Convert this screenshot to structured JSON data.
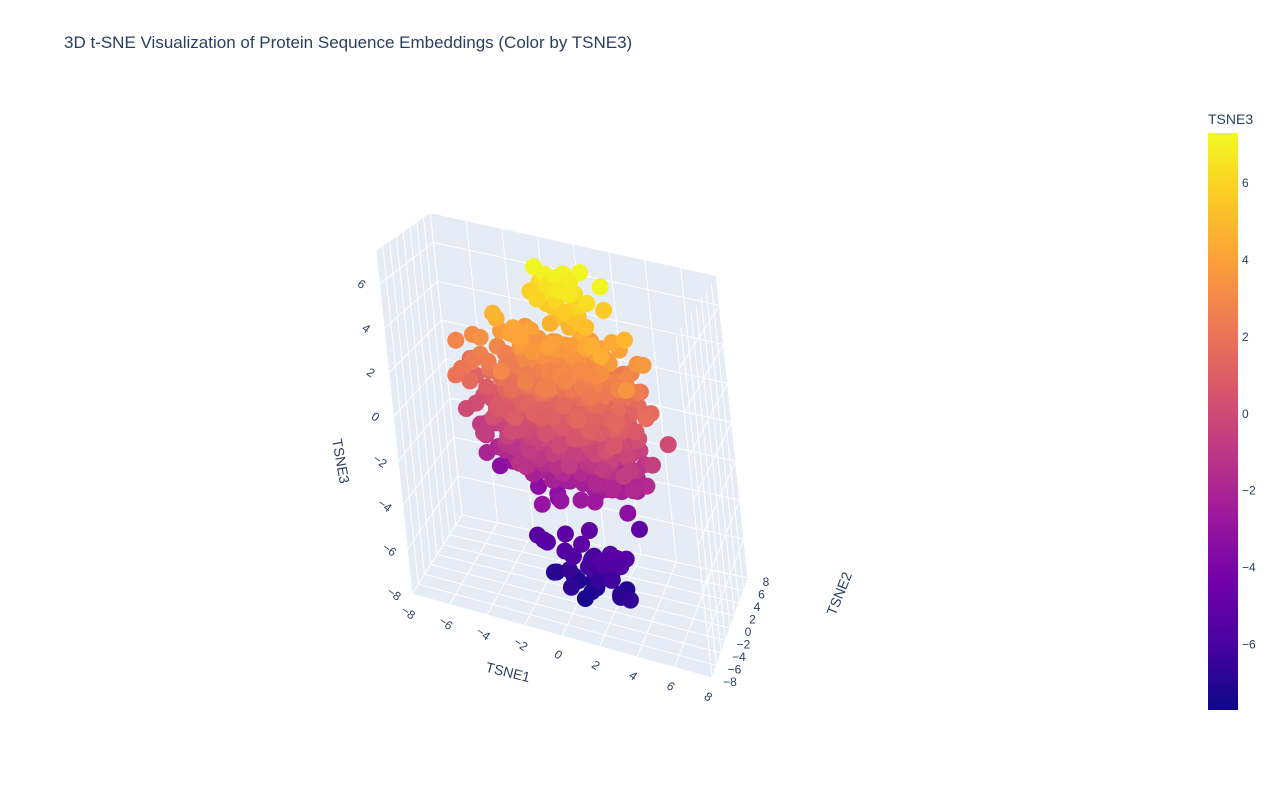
{
  "chart_data": {
    "type": "scatter3d",
    "title": "3D t-SNE Visualization of Protein Sequence Embeddings (Color by TSNE3)",
    "x_axis": {
      "label": "TSNE1",
      "range": [
        -8,
        8
      ],
      "ticks": [
        "−8",
        "−6",
        "−4",
        "−2",
        "0",
        "2",
        "4",
        "6",
        "8"
      ]
    },
    "y_axis": {
      "label": "TSNE2",
      "range": [
        -8,
        8
      ],
      "ticks": [
        "−8",
        "−6",
        "−4",
        "−2",
        "0",
        "2",
        "4",
        "6",
        "8"
      ]
    },
    "z_axis": {
      "label": "TSNE3",
      "range": [
        -8,
        7.5
      ],
      "ticks": [
        "−8",
        "−6",
        "−4",
        "−2",
        "0",
        "2",
        "4",
        "6"
      ]
    },
    "colorbar": {
      "title": "TSNE3",
      "range": [
        -7.7,
        7.3
      ],
      "ticks": [
        "−6",
        "−4",
        "−2",
        "0",
        "2",
        "4",
        "6"
      ],
      "colorscale": "plasma",
      "colors": [
        "#0d0887",
        "#46039f",
        "#7201a8",
        "#9c179e",
        "#bd3786",
        "#d8576b",
        "#ed7953",
        "#fb9f3a",
        "#fdca26",
        "#f0f921"
      ]
    },
    "points_note_count": 1400,
    "grid": true,
    "background": "#e5ecf6"
  }
}
